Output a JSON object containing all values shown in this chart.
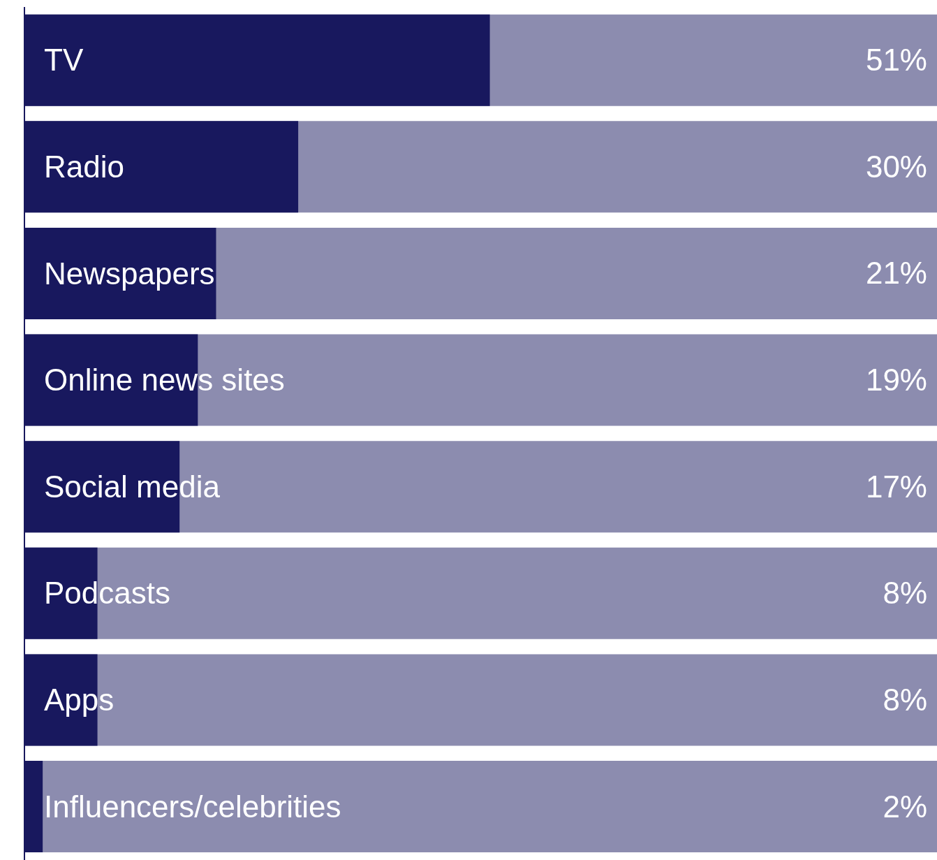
{
  "chart_data": {
    "type": "bar",
    "orientation": "horizontal",
    "categories": [
      "TV",
      "Radio",
      "Newspapers",
      "Online news sites",
      "Social media",
      "Podcasts",
      "Apps",
      "Influencers/celebrities"
    ],
    "series": [
      {
        "color": "#18185e",
        "values": [
          51,
          30,
          21,
          19,
          17,
          8,
          8,
          2
        ],
        "value_labels": [
          "51%",
          "30%",
          "21%",
          "19%",
          "17%",
          "8%",
          "8%",
          "2%"
        ]
      }
    ],
    "xlim": [
      0,
      100
    ],
    "tick_labels": "y"
  }
}
